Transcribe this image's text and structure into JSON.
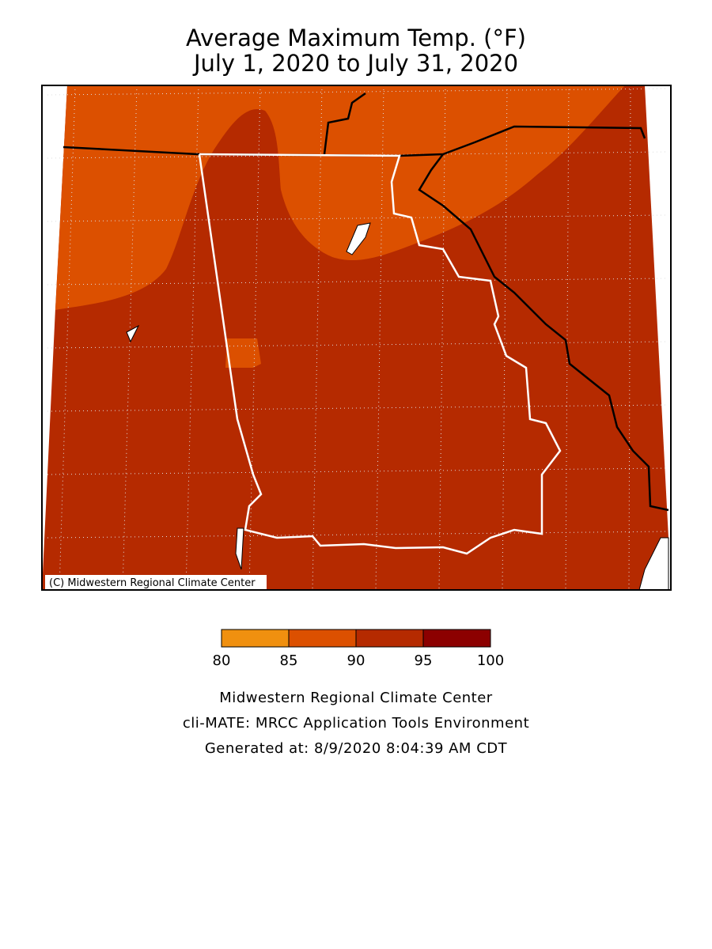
{
  "title": [
    "Average Maximum Temp. (°F)",
    "July 1, 2020 to July 31, 2020"
  ],
  "map": {
    "copyright": "(C) Midwestern Regional Climate Center"
  },
  "legend": {
    "bins": [
      80,
      85,
      90,
      95,
      100
    ],
    "colors": [
      "#f0900f",
      "#dc5000",
      "#b52a00",
      "#8c0000"
    ]
  },
  "footer": [
    "Midwestern Regional Climate Center",
    "cli-MATE: MRCC Application Tools Environment",
    "Generated at: 8/9/2020 8:04:39 AM CDT"
  ]
}
